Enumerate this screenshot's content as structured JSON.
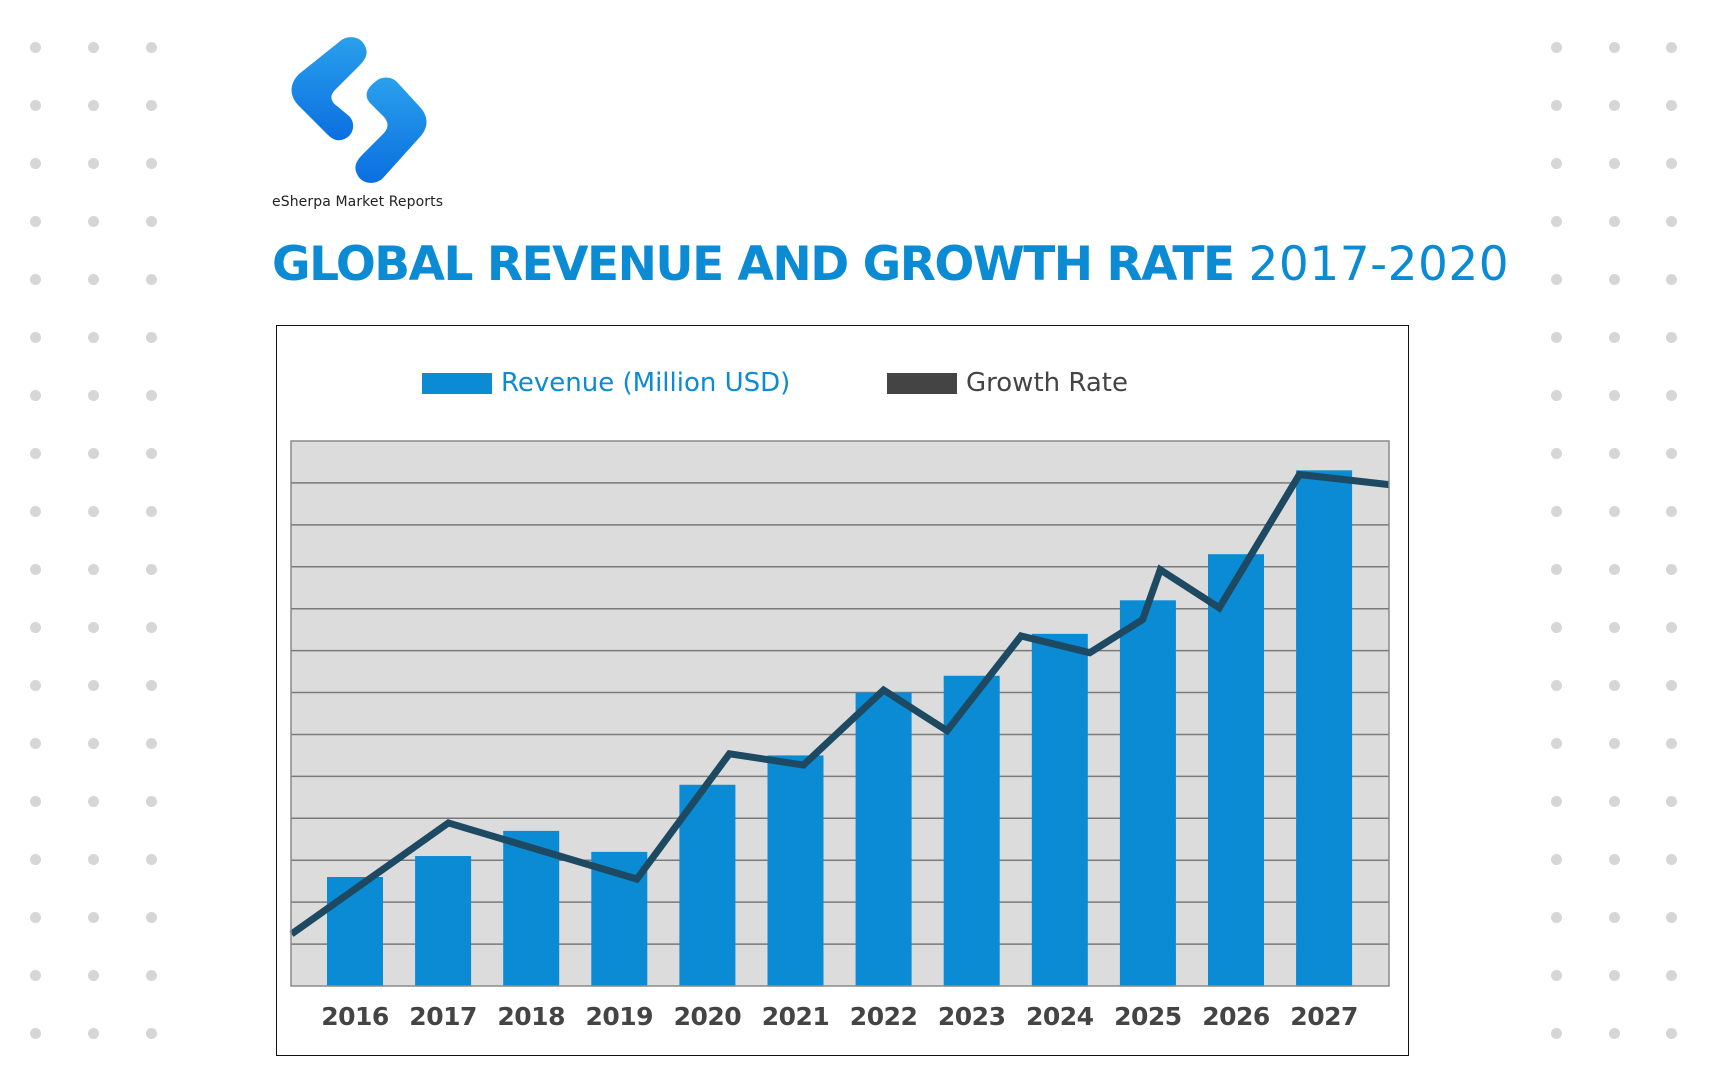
{
  "brand": {
    "name": "eSherpa Market Reports",
    "logo_icon": "s-shaped-logo-icon",
    "brand_color": "#1a8fe8"
  },
  "title": {
    "bold": "GLOBAL REVENUE AND GROWTH RATE",
    "light": "2017-2020",
    "color": "#0a8bd3"
  },
  "colors": {
    "revenue": "#0a8bd3",
    "growth_line": "#1d4a62",
    "growth_legend": "#444444",
    "plot_bg": "#dcdcdc",
    "gridline": "#7a7a7a",
    "background_dots": "#d6d6d6"
  },
  "chart_data": {
    "type": "bar",
    "title": "GLOBAL REVENUE AND GROWTH RATE 2017-2020",
    "xlabel": "",
    "ylabel": "",
    "categories": [
      "2016",
      "2017",
      "2018",
      "2019",
      "2020",
      "2021",
      "2022",
      "2023",
      "2024",
      "2025",
      "2026",
      "2027"
    ],
    "ylim": [
      0,
      13
    ],
    "y_tick_labels_shown": false,
    "grid": true,
    "gridline_count": 12,
    "legend_position": "top-center",
    "series": [
      {
        "name": "Revenue (Million USD)",
        "type": "bar",
        "values": [
          2.6,
          3.1,
          3.7,
          3.2,
          4.8,
          5.5,
          7.0,
          7.4,
          8.4,
          9.2,
          10.3,
          12.3
        ]
      },
      {
        "name": "Growth Rate",
        "type": "line",
        "points": [
          {
            "x": -0.72,
            "y": 1.24
          },
          {
            "x": 1.06,
            "y": 3.89
          },
          {
            "x": 3.2,
            "y": 2.55
          },
          {
            "x": 4.25,
            "y": 5.54
          },
          {
            "x": 5.09,
            "y": 5.27
          },
          {
            "x": 6.0,
            "y": 7.06
          },
          {
            "x": 6.72,
            "y": 6.09
          },
          {
            "x": 7.56,
            "y": 8.35
          },
          {
            "x": 8.34,
            "y": 7.95
          },
          {
            "x": 8.94,
            "y": 8.74
          },
          {
            "x": 9.14,
            "y": 9.93
          },
          {
            "x": 9.81,
            "y": 9.02
          },
          {
            "x": 10.72,
            "y": 12.2
          },
          {
            "x": 11.74,
            "y": 11.96
          }
        ]
      }
    ]
  }
}
